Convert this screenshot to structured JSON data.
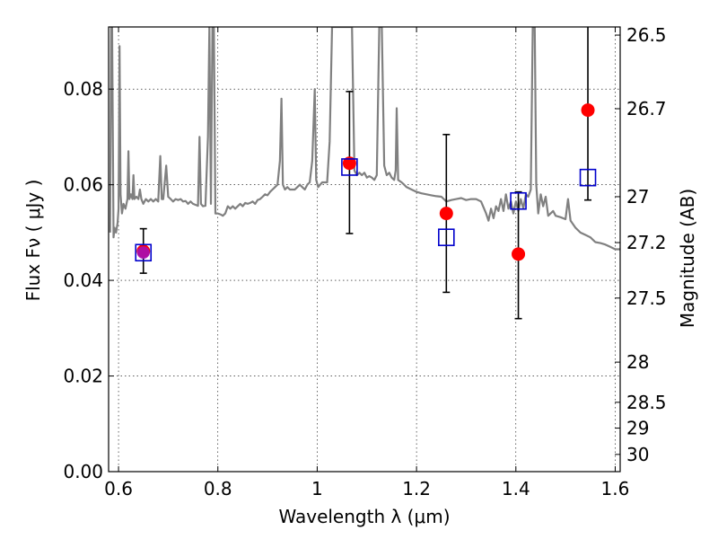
{
  "chart_data": {
    "type": "scatter",
    "xlabel": "Wavelength  λ (μm)",
    "ylabel": "Flux  Fν  ( μJy )",
    "y2label": "Magnitude (AB)",
    "xlim": [
      0.58,
      1.61
    ],
    "ylim": [
      0.0,
      0.093
    ],
    "grid": true,
    "x_ticks": [
      {
        "value": 0.6,
        "label": "0.6"
      },
      {
        "value": 0.8,
        "label": "0.8"
      },
      {
        "value": 1.0,
        "label": "1"
      },
      {
        "value": 1.2,
        "label": "1.2"
      },
      {
        "value": 1.4,
        "label": "1.4"
      },
      {
        "value": 1.6,
        "label": "1.6"
      }
    ],
    "y_ticks": [
      {
        "value": 0.0,
        "label": "0.00"
      },
      {
        "value": 0.02,
        "label": "0.02"
      },
      {
        "value": 0.04,
        "label": "0.04"
      },
      {
        "value": 0.06,
        "label": "0.06"
      },
      {
        "value": 0.08,
        "label": "0.08"
      }
    ],
    "y2_ticks": [
      {
        "flux": 0.0913,
        "label": "26.5"
      },
      {
        "flux": 0.0759,
        "label": "26.7"
      },
      {
        "flux": 0.0575,
        "label": "27"
      },
      {
        "flux": 0.0479,
        "label": "27.2"
      },
      {
        "flux": 0.0363,
        "label": "27.5"
      },
      {
        "flux": 0.0229,
        "label": "28"
      },
      {
        "flux": 0.0145,
        "label": "28.5"
      },
      {
        "flux": 0.0091,
        "label": "29"
      },
      {
        "flux": 0.0036,
        "label": "30"
      }
    ],
    "observed": {
      "color": "#ff0000",
      "points": [
        {
          "x": 0.65,
          "y": 0.0461,
          "err_low": 0.0046,
          "err_high": 0.0047
        },
        {
          "x": 1.065,
          "y": 0.0645,
          "err_low": 0.0147,
          "err_high": 0.015
        },
        {
          "x": 1.26,
          "y": 0.054,
          "err_low": 0.0165,
          "err_high": 0.0165
        },
        {
          "x": 1.405,
          "y": 0.0455,
          "err_low": 0.0135,
          "err_high": 0.013
        },
        {
          "x": 1.545,
          "y": 0.0756,
          "err_low": 0.0188,
          "err_high": 0.018
        }
      ]
    },
    "model_points": {
      "color": "#0000cc",
      "points": [
        {
          "x": 0.65,
          "y": 0.0458
        },
        {
          "x": 1.065,
          "y": 0.0637
        },
        {
          "x": 1.26,
          "y": 0.049
        },
        {
          "x": 1.405,
          "y": 0.0566
        },
        {
          "x": 1.545,
          "y": 0.0615
        }
      ]
    },
    "model_spectrum": {
      "color": "#808080",
      "points": [
        [
          0.583,
          0.05
        ],
        [
          0.585,
          0.093
        ],
        [
          0.587,
          0.093
        ],
        [
          0.59,
          0.049
        ],
        [
          0.592,
          0.051
        ],
        [
          0.595,
          0.05
        ],
        [
          0.598,
          0.052
        ],
        [
          0.6,
          0.055
        ],
        [
          0.602,
          0.089
        ],
        [
          0.604,
          0.058
        ],
        [
          0.607,
          0.054
        ],
        [
          0.61,
          0.056
        ],
        [
          0.614,
          0.055
        ],
        [
          0.618,
          0.057
        ],
        [
          0.62,
          0.067
        ],
        [
          0.622,
          0.057
        ],
        [
          0.625,
          0.058
        ],
        [
          0.628,
          0.057
        ],
        [
          0.63,
          0.062
        ],
        [
          0.632,
          0.057
        ],
        [
          0.636,
          0.0575
        ],
        [
          0.64,
          0.057
        ],
        [
          0.643,
          0.059
        ],
        [
          0.646,
          0.057
        ],
        [
          0.65,
          0.056
        ],
        [
          0.655,
          0.057
        ],
        [
          0.66,
          0.0565
        ],
        [
          0.665,
          0.057
        ],
        [
          0.67,
          0.0565
        ],
        [
          0.675,
          0.057
        ],
        [
          0.68,
          0.0565
        ],
        [
          0.684,
          0.066
        ],
        [
          0.687,
          0.057
        ],
        [
          0.69,
          0.057
        ],
        [
          0.696,
          0.064
        ],
        [
          0.7,
          0.0575
        ],
        [
          0.705,
          0.057
        ],
        [
          0.71,
          0.0565
        ],
        [
          0.715,
          0.057
        ],
        [
          0.72,
          0.0568
        ],
        [
          0.725,
          0.057
        ],
        [
          0.73,
          0.0565
        ],
        [
          0.735,
          0.0566
        ],
        [
          0.74,
          0.056
        ],
        [
          0.745,
          0.0565
        ],
        [
          0.75,
          0.056
        ],
        [
          0.755,
          0.0558
        ],
        [
          0.76,
          0.0556
        ],
        [
          0.763,
          0.07
        ],
        [
          0.766,
          0.056
        ],
        [
          0.77,
          0.0555
        ],
        [
          0.775,
          0.0556
        ],
        [
          0.78,
          0.07
        ],
        [
          0.783,
          0.093
        ],
        [
          0.786,
          0.056
        ],
        [
          0.789,
          0.093
        ],
        [
          0.792,
          0.093
        ],
        [
          0.795,
          0.054
        ],
        [
          0.8,
          0.054
        ],
        [
          0.805,
          0.0538
        ],
        [
          0.81,
          0.0535
        ],
        [
          0.815,
          0.054
        ],
        [
          0.82,
          0.0555
        ],
        [
          0.825,
          0.055
        ],
        [
          0.83,
          0.0555
        ],
        [
          0.835,
          0.055
        ],
        [
          0.84,
          0.0555
        ],
        [
          0.845,
          0.056
        ],
        [
          0.85,
          0.0555
        ],
        [
          0.855,
          0.0562
        ],
        [
          0.86,
          0.056
        ],
        [
          0.865,
          0.0562
        ],
        [
          0.87,
          0.0565
        ],
        [
          0.875,
          0.056
        ],
        [
          0.88,
          0.0568
        ],
        [
          0.885,
          0.057
        ],
        [
          0.89,
          0.0575
        ],
        [
          0.895,
          0.058
        ],
        [
          0.9,
          0.0578
        ],
        [
          0.905,
          0.0585
        ],
        [
          0.91,
          0.059
        ],
        [
          0.915,
          0.0595
        ],
        [
          0.92,
          0.06
        ],
        [
          0.925,
          0.065
        ],
        [
          0.928,
          0.078
        ],
        [
          0.931,
          0.06
        ],
        [
          0.935,
          0.059
        ],
        [
          0.94,
          0.0595
        ],
        [
          0.945,
          0.059
        ],
        [
          0.95,
          0.059
        ],
        [
          0.955,
          0.059
        ],
        [
          0.96,
          0.0595
        ],
        [
          0.965,
          0.06
        ],
        [
          0.97,
          0.0595
        ],
        [
          0.975,
          0.059
        ],
        [
          0.98,
          0.06
        ],
        [
          0.985,
          0.0605
        ],
        [
          0.99,
          0.065
        ],
        [
          0.995,
          0.08
        ],
        [
          0.998,
          0.061
        ],
        [
          1.002,
          0.0595
        ],
        [
          1.006,
          0.06
        ],
        [
          1.01,
          0.0605
        ],
        [
          1.015,
          0.0605
        ],
        [
          1.02,
          0.0605
        ],
        [
          1.025,
          0.069
        ],
        [
          1.03,
          0.093
        ],
        [
          1.06,
          0.093
        ],
        [
          1.07,
          0.093
        ],
        [
          1.075,
          0.063
        ],
        [
          1.08,
          0.062
        ],
        [
          1.085,
          0.0625
        ],
        [
          1.09,
          0.062
        ],
        [
          1.095,
          0.0625
        ],
        [
          1.1,
          0.0615
        ],
        [
          1.105,
          0.0618
        ],
        [
          1.11,
          0.0615
        ],
        [
          1.115,
          0.061
        ],
        [
          1.12,
          0.062
        ],
        [
          1.125,
          0.093
        ],
        [
          1.13,
          0.093
        ],
        [
          1.135,
          0.064
        ],
        [
          1.14,
          0.062
        ],
        [
          1.145,
          0.0625
        ],
        [
          1.15,
          0.0615
        ],
        [
          1.155,
          0.061
        ],
        [
          1.158,
          0.063
        ],
        [
          1.16,
          0.076
        ],
        [
          1.163,
          0.061
        ],
        [
          1.17,
          0.0605
        ],
        [
          1.175,
          0.06
        ],
        [
          1.18,
          0.0595
        ],
        [
          1.19,
          0.059
        ],
        [
          1.2,
          0.0585
        ],
        [
          1.21,
          0.0582
        ],
        [
          1.22,
          0.058
        ],
        [
          1.23,
          0.0578
        ],
        [
          1.24,
          0.0576
        ],
        [
          1.25,
          0.0575
        ],
        [
          1.26,
          0.0565
        ],
        [
          1.27,
          0.0568
        ],
        [
          1.28,
          0.057
        ],
        [
          1.29,
          0.0572
        ],
        [
          1.3,
          0.0568
        ],
        [
          1.31,
          0.057
        ],
        [
          1.32,
          0.057
        ],
        [
          1.33,
          0.0565
        ],
        [
          1.34,
          0.054
        ],
        [
          1.345,
          0.0525
        ],
        [
          1.35,
          0.055
        ],
        [
          1.355,
          0.053
        ],
        [
          1.36,
          0.0555
        ],
        [
          1.365,
          0.0545
        ],
        [
          1.37,
          0.057
        ],
        [
          1.375,
          0.0545
        ],
        [
          1.38,
          0.058
        ],
        [
          1.385,
          0.055
        ],
        [
          1.39,
          0.0565
        ],
        [
          1.395,
          0.054
        ],
        [
          1.4,
          0.0565
        ],
        [
          1.405,
          0.0545
        ],
        [
          1.41,
          0.057
        ],
        [
          1.415,
          0.055
        ],
        [
          1.42,
          0.058
        ],
        [
          1.425,
          0.0575
        ],
        [
          1.43,
          0.059
        ],
        [
          1.434,
          0.093
        ],
        [
          1.438,
          0.093
        ],
        [
          1.441,
          0.06
        ],
        [
          1.445,
          0.054
        ],
        [
          1.45,
          0.058
        ],
        [
          1.455,
          0.0555
        ],
        [
          1.46,
          0.0575
        ],
        [
          1.465,
          0.0535
        ],
        [
          1.47,
          0.054
        ],
        [
          1.475,
          0.0545
        ],
        [
          1.48,
          0.0535
        ],
        [
          1.49,
          0.0532
        ],
        [
          1.5,
          0.0528
        ],
        [
          1.505,
          0.057
        ],
        [
          1.51,
          0.0525
        ],
        [
          1.52,
          0.051
        ],
        [
          1.53,
          0.05
        ],
        [
          1.54,
          0.0495
        ],
        [
          1.55,
          0.049
        ],
        [
          1.56,
          0.048
        ],
        [
          1.57,
          0.0478
        ],
        [
          1.58,
          0.0475
        ],
        [
          1.59,
          0.047
        ],
        [
          1.6,
          0.0465
        ],
        [
          1.61,
          0.0465
        ]
      ]
    }
  }
}
